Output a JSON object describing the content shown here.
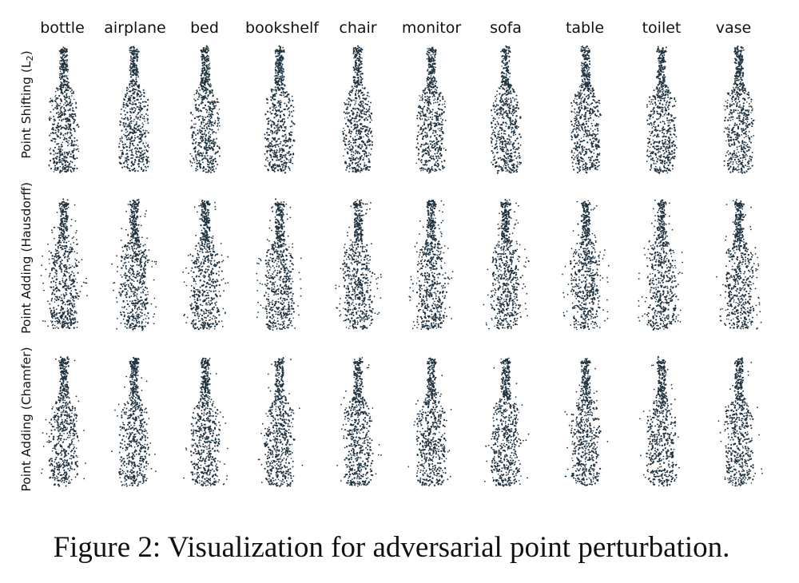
{
  "figure": {
    "column_labels": [
      "bottle",
      "airplane",
      "bed",
      "bookshelf",
      "chair",
      "monitor",
      "sofa",
      "table",
      "toilet",
      "vase"
    ],
    "row_labels": [
      {
        "text": "Point Shifting (L",
        "sub": "2",
        "after": ")"
      },
      {
        "text": "Point Adding (Hausdorff)",
        "sub": "",
        "after": ""
      },
      {
        "text": "Point Adding (Chamfer)",
        "sub": "",
        "after": ""
      }
    ],
    "point_color": "#1f3340",
    "caption": "Figure 2: Visualization for adversarial point perturbation."
  }
}
